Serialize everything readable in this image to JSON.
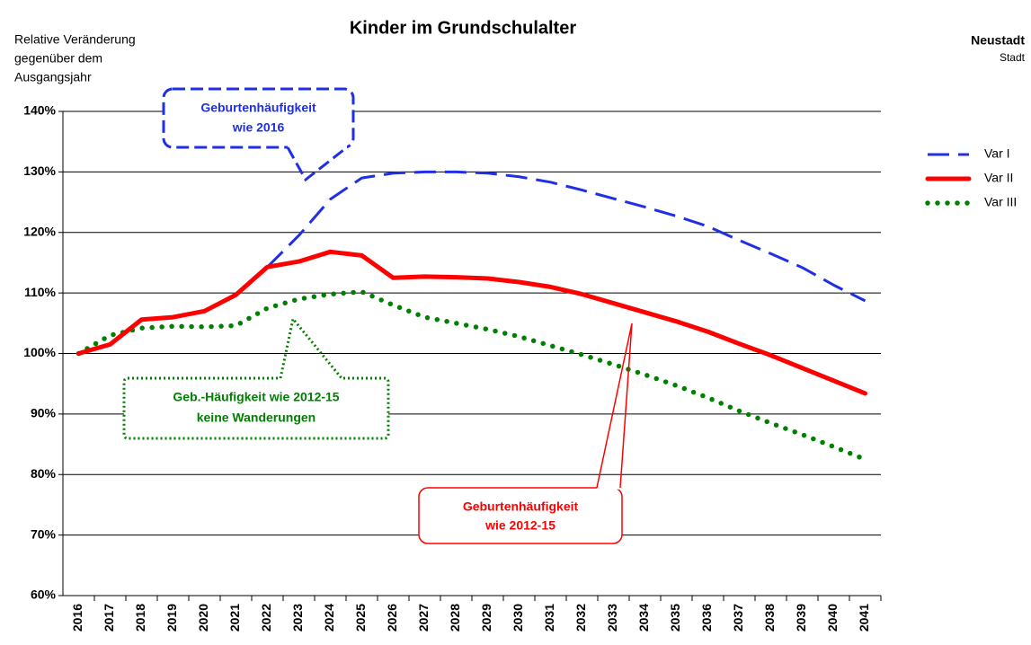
{
  "chart_data": {
    "type": "line",
    "title": "Kinder im Grundschulalter",
    "y_label": [
      "Relative Veränderung",
      "gegenüber dem",
      "Ausgangsjahr"
    ],
    "region": "Neustadt",
    "region_type": "Stadt",
    "categories": [
      "2016",
      "2017",
      "2018",
      "2019",
      "2020",
      "2021",
      "2022",
      "2023",
      "2024",
      "2025",
      "2026",
      "2027",
      "2028",
      "2029",
      "2030",
      "2031",
      "2032",
      "2033",
      "2034",
      "2035",
      "2036",
      "2037",
      "2038",
      "2039",
      "2040",
      "2041"
    ],
    "series": [
      {
        "name": "Var I",
        "color": "#1f2fe6",
        "style": "dashed",
        "values": [
          100,
          101.5,
          105.6,
          106,
          107,
          109.7,
          114.3,
          119.5,
          125.5,
          129,
          129.8,
          130,
          130,
          129.8,
          129.2,
          128.3,
          127,
          125.6,
          124.2,
          122.7,
          121,
          118.7,
          116.5,
          114.2,
          111.3,
          108.7
        ]
      },
      {
        "name": "Var II",
        "color": "#ff0000",
        "style": "solid",
        "values": [
          100,
          101.5,
          105.6,
          106,
          107,
          109.7,
          114.3,
          115.2,
          116.8,
          116.2,
          112.5,
          112.7,
          112.6,
          112.4,
          111.8,
          111,
          109.8,
          108.3,
          106.8,
          105.3,
          103.6,
          101.6,
          99.7,
          97.6,
          95.5,
          93.4
        ]
      },
      {
        "name": "Var III",
        "color": "#008000",
        "style": "dotted",
        "values": [
          100,
          103,
          104.2,
          104.5,
          104.4,
          104.6,
          107.5,
          109,
          109.8,
          110.2,
          108,
          106,
          105,
          104,
          102.8,
          101.3,
          99.8,
          98.2,
          96.5,
          94.7,
          92.7,
          90.5,
          88.5,
          86.6,
          84.6,
          82.5
        ]
      }
    ],
    "ylim": [
      60,
      140
    ],
    "yticks": [
      {
        "value": 60,
        "label": "60%"
      },
      {
        "value": 70,
        "label": "70%"
      },
      {
        "value": 80,
        "label": "80%"
      },
      {
        "value": 90,
        "label": "90%"
      },
      {
        "value": 100,
        "label": "100%"
      },
      {
        "value": 110,
        "label": "110%"
      },
      {
        "value": 120,
        "label": "120%"
      },
      {
        "value": 130,
        "label": "130%"
      },
      {
        "value": 140,
        "label": "140%"
      }
    ],
    "grid": true,
    "legend": "right",
    "annotations": [
      {
        "lines": [
          "Geburtenhäufigkeit",
          "wie 2016"
        ],
        "color": "#1f2fe6",
        "style": "dashed"
      },
      {
        "lines": [
          "Geb.-Häufigkeit wie 2012-15",
          "keine Wanderungen"
        ],
        "color": "#008000",
        "style": "dotted"
      },
      {
        "lines": [
          "Geburtenhäufigkeit",
          "wie 2012-15"
        ],
        "color": "#ff0000",
        "style": "solid"
      }
    ]
  }
}
